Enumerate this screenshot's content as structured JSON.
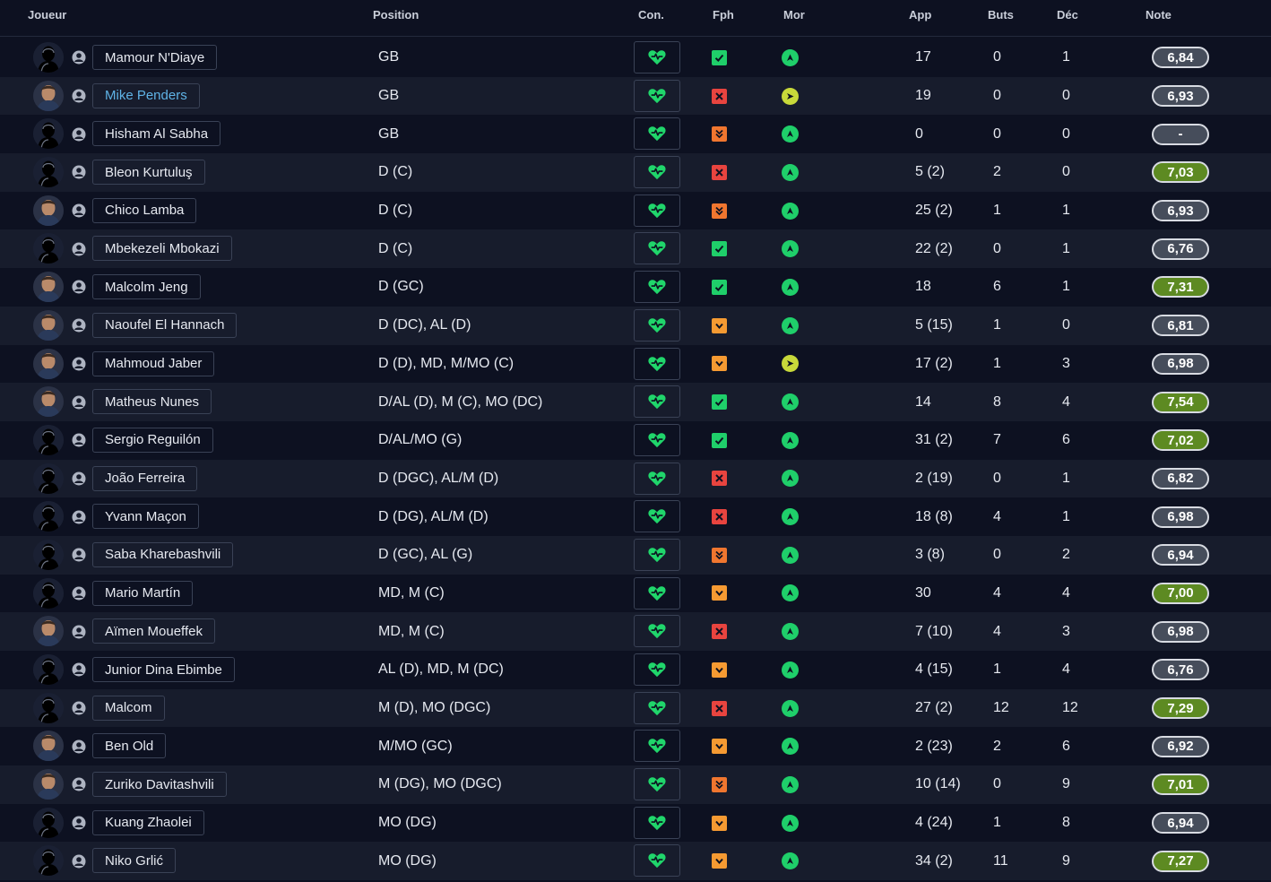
{
  "header": {
    "joueur": "Joueur",
    "position": "Position",
    "con": "Con.",
    "fph": "Fph",
    "mor": "Mor",
    "app": "App",
    "buts": "Buts",
    "dec": "Déc",
    "note": "Note"
  },
  "colors": {
    "background": "#0d1121",
    "alt_row": "#171c2c",
    "condition_heart": "#20d66b",
    "fph_ok": "#1fcf6a",
    "fph_bad": "#e8443f",
    "fph_warn": "#f59a32",
    "morale_good": "#1fcf6a",
    "morale_ok": "#c8d93a",
    "note_high": "#5d8a22",
    "note_normal": "#464d5b",
    "link": "#5fb3e6"
  },
  "players": [
    {
      "name": "Mamour N'Diaye",
      "avatar": "silhouette",
      "position": "GB",
      "condition": "heart-icon",
      "fph": "ok",
      "morale": "good",
      "morale_icon": "arrow-up-icon",
      "app": "17",
      "buts": "0",
      "dec": "1",
      "note": "6,84",
      "note_level": "normal"
    },
    {
      "name": "Mike Penders",
      "avatar": "photo",
      "link": true,
      "position": "GB",
      "condition": "heart-icon",
      "fph": "bad",
      "morale": "ok",
      "morale_icon": "arrow-right-icon",
      "app": "19",
      "buts": "0",
      "dec": "0",
      "note": "6,93",
      "note_level": "normal"
    },
    {
      "name": "Hisham Al Sabha",
      "avatar": "silhouette",
      "position": "GB",
      "condition": "heart-icon",
      "fph": "dwarn",
      "morale": "good",
      "morale_icon": "arrow-up-icon",
      "app": "0",
      "buts": "0",
      "dec": "0",
      "note": "-",
      "note_level": "normal"
    },
    {
      "name": "Bleon Kurtuluş",
      "avatar": "silhouette",
      "position": "D (C)",
      "condition": "heart-icon",
      "fph": "bad",
      "morale": "good",
      "morale_icon": "arrow-up-icon",
      "app": "5 (2)",
      "buts": "2",
      "dec": "0",
      "note": "7,03",
      "note_level": "high"
    },
    {
      "name": "Chico Lamba",
      "avatar": "photo",
      "position": "D (C)",
      "condition": "heart-icon",
      "fph": "dwarn",
      "morale": "good",
      "morale_icon": "arrow-up-icon",
      "app": "25 (2)",
      "buts": "1",
      "dec": "1",
      "note": "6,93",
      "note_level": "normal"
    },
    {
      "name": "Mbekezeli Mbokazi",
      "avatar": "silhouette",
      "position": "D (C)",
      "condition": "heart-icon",
      "fph": "ok",
      "morale": "good",
      "morale_icon": "arrow-up-icon",
      "app": "22 (2)",
      "buts": "0",
      "dec": "1",
      "note": "6,76",
      "note_level": "normal"
    },
    {
      "name": "Malcolm Jeng",
      "avatar": "photo",
      "position": "D (GC)",
      "condition": "heart-icon",
      "fph": "ok",
      "morale": "good",
      "morale_icon": "arrow-up-icon",
      "app": "18",
      "buts": "6",
      "dec": "1",
      "note": "7,31",
      "note_level": "high"
    },
    {
      "name": "Naoufel El Hannach",
      "avatar": "photo",
      "position": "D (DC), AL (D)",
      "condition": "heart-icon",
      "fph": "warn",
      "morale": "good",
      "morale_icon": "arrow-up-icon",
      "app": "5 (15)",
      "buts": "1",
      "dec": "0",
      "note": "6,81",
      "note_level": "normal"
    },
    {
      "name": "Mahmoud Jaber",
      "avatar": "photo",
      "position": "D (D), MD, M/MO (C)",
      "condition": "heart-icon",
      "fph": "warn",
      "morale": "ok",
      "morale_icon": "arrow-right-icon",
      "app": "17 (2)",
      "buts": "1",
      "dec": "3",
      "note": "6,98",
      "note_level": "normal"
    },
    {
      "name": "Matheus Nunes",
      "avatar": "photo",
      "position": "D/AL (D), M (C), MO (DC)",
      "condition": "heart-icon",
      "fph": "ok",
      "morale": "good",
      "morale_icon": "arrow-up-icon",
      "app": "14",
      "buts": "8",
      "dec": "4",
      "note": "7,54",
      "note_level": "high"
    },
    {
      "name": "Sergio Reguilón",
      "avatar": "silhouette",
      "position": "D/AL/MO (G)",
      "condition": "heart-icon",
      "fph": "ok",
      "morale": "good",
      "morale_icon": "arrow-up-icon",
      "app": "31 (2)",
      "buts": "7",
      "dec": "6",
      "note": "7,02",
      "note_level": "high"
    },
    {
      "name": "João Ferreira",
      "avatar": "silhouette",
      "position": "D (DGC), AL/M (D)",
      "condition": "heart-icon",
      "fph": "bad",
      "morale": "good",
      "morale_icon": "arrow-up-icon",
      "app": "2 (19)",
      "buts": "0",
      "dec": "1",
      "note": "6,82",
      "note_level": "normal"
    },
    {
      "name": "Yvann Maçon",
      "avatar": "silhouette",
      "position": "D (DG), AL/M (D)",
      "condition": "heart-icon",
      "fph": "bad",
      "morale": "good",
      "morale_icon": "arrow-up-icon",
      "app": "18 (8)",
      "buts": "4",
      "dec": "1",
      "note": "6,98",
      "note_level": "normal"
    },
    {
      "name": "Saba Kharebashvili",
      "avatar": "silhouette",
      "position": "D (GC), AL (G)",
      "condition": "heart-icon",
      "fph": "dwarn",
      "morale": "good",
      "morale_icon": "arrow-up-icon",
      "app": "3 (8)",
      "buts": "0",
      "dec": "2",
      "note": "6,94",
      "note_level": "normal"
    },
    {
      "name": "Mario Martín",
      "avatar": "silhouette",
      "position": "MD, M (C)",
      "condition": "heart-icon",
      "fph": "warn",
      "morale": "good",
      "morale_icon": "arrow-up-icon",
      "app": "30",
      "buts": "4",
      "dec": "4",
      "note": "7,00",
      "note_level": "high"
    },
    {
      "name": "Aïmen Moueffek",
      "avatar": "photo",
      "position": "MD, M (C)",
      "condition": "heart-icon",
      "fph": "bad",
      "morale": "good",
      "morale_icon": "arrow-up-icon",
      "app": "7 (10)",
      "buts": "4",
      "dec": "3",
      "note": "6,98",
      "note_level": "normal"
    },
    {
      "name": "Junior Dina Ebimbe",
      "avatar": "silhouette",
      "position": "AL (D), MD, M (DC)",
      "condition": "heart-icon",
      "fph": "warn",
      "morale": "good",
      "morale_icon": "arrow-up-icon",
      "app": "4 (15)",
      "buts": "1",
      "dec": "4",
      "note": "6,76",
      "note_level": "normal"
    },
    {
      "name": "Malcom",
      "avatar": "silhouette",
      "position": "M (D), MO (DGC)",
      "condition": "heart-icon",
      "fph": "bad",
      "morale": "good",
      "morale_icon": "arrow-up-icon",
      "app": "27 (2)",
      "buts": "12",
      "dec": "12",
      "note": "7,29",
      "note_level": "high"
    },
    {
      "name": "Ben Old",
      "avatar": "photo",
      "position": "M/MO (GC)",
      "condition": "heart-icon",
      "fph": "warn",
      "morale": "good",
      "morale_icon": "arrow-up-icon",
      "app": "2 (23)",
      "buts": "2",
      "dec": "6",
      "note": "6,92",
      "note_level": "normal"
    },
    {
      "name": "Zuriko Davitashvili",
      "avatar": "photo",
      "position": "M (DG), MO (DGC)",
      "condition": "heart-icon",
      "fph": "dwarn",
      "morale": "good",
      "morale_icon": "arrow-up-icon",
      "app": "10 (14)",
      "buts": "0",
      "dec": "9",
      "note": "7,01",
      "note_level": "high"
    },
    {
      "name": "Kuang Zhaolei",
      "avatar": "silhouette",
      "position": "MO (DG)",
      "condition": "heart-icon",
      "fph": "warn",
      "morale": "good",
      "morale_icon": "arrow-up-icon",
      "app": "4 (24)",
      "buts": "1",
      "dec": "8",
      "note": "6,94",
      "note_level": "normal"
    },
    {
      "name": "Niko Grlić",
      "avatar": "silhouette",
      "position": "MO (DG)",
      "condition": "heart-icon",
      "fph": "warn",
      "morale": "good",
      "morale_icon": "arrow-up-icon",
      "app": "34 (2)",
      "buts": "11",
      "dec": "9",
      "note": "7,27",
      "note_level": "high"
    }
  ]
}
